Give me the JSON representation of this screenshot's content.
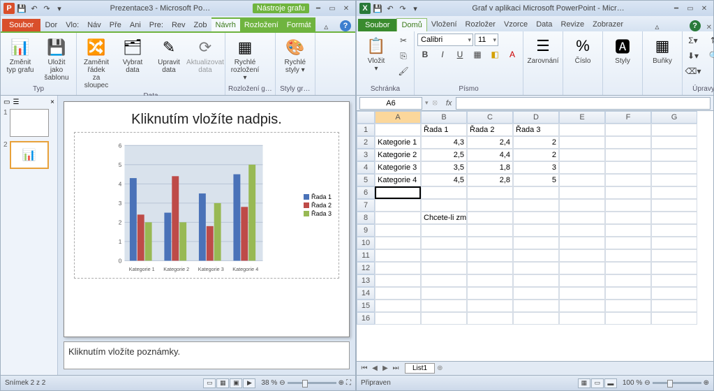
{
  "pp": {
    "title": "Prezentace3 - Microsoft Po…",
    "chart_tools": "Nástroje grafu",
    "file_tab": "Soubor",
    "tabs": [
      "Dor",
      "Vlo:",
      "Náv",
      "Pře",
      "Ani",
      "Pre:",
      "Rev",
      "Zob"
    ],
    "chart_tabs": [
      "Návrh",
      "Rozložení",
      "Formát"
    ],
    "ribbon_groups": {
      "typ": {
        "label": "Typ",
        "btns": [
          {
            "lbl": "Změnit\ntyp grafu",
            "ico": "📊"
          },
          {
            "lbl": "Uložit jako\nšablonu",
            "ico": "💾"
          }
        ]
      },
      "data": {
        "label": "Data",
        "btns": [
          {
            "lbl": "Zaměnit řádek\nza sloupec",
            "ico": "🔀"
          },
          {
            "lbl": "Vybrat\ndata",
            "ico": "🗂"
          },
          {
            "lbl": "Upravit\ndata",
            "ico": "✎"
          },
          {
            "lbl": "Aktualizovat\ndata",
            "ico": "⟳"
          }
        ]
      },
      "layout": {
        "label": "Rozložení g…",
        "btn": {
          "lbl": "Rychlé\nrozložení ▾",
          "ico": "▦"
        }
      },
      "styles": {
        "label": "Styly gr…",
        "btn": {
          "lbl": "Rychlé\nstyly ▾",
          "ico": "🎨"
        }
      }
    },
    "slide_title": "Kliknutím vložíte nadpis.",
    "notes_placeholder": "Kliknutím vložíte poznámky.",
    "chart": {
      "categories": [
        "Kategorie 1",
        "Kategorie 2",
        "Kategorie 3",
        "Kategorie 4"
      ],
      "series": [
        {
          "name": "Řada 1",
          "color": "#4a72b8",
          "values": [
            4.3,
            2.5,
            3.5,
            4.5
          ]
        },
        {
          "name": "Řada 2",
          "color": "#be4b48",
          "values": [
            2.4,
            4.4,
            1.8,
            2.8
          ]
        },
        {
          "name": "Řada 3",
          "color": "#98b954",
          "values": [
            2,
            2,
            3,
            5
          ]
        }
      ],
      "ylim": [
        0,
        6
      ],
      "ytick": 1,
      "bg": "#d9e2ec",
      "grid": "#b8c5d6"
    },
    "status": {
      "slide": "Snímek 2 z 2",
      "zoom": "38 %",
      "lang": ""
    }
  },
  "xl": {
    "title": "Graf v aplikaci Microsoft PowerPoint - Micr…",
    "file_tab": "Soubor",
    "tabs": [
      "Domů",
      "Vložení",
      "Rozložer",
      "Vzorce",
      "Data",
      "Revize",
      "Zobrazer"
    ],
    "active_tab": "Domů",
    "font": {
      "name": "Calibri",
      "size": "11"
    },
    "ribbon_groups": [
      "Schránka",
      "Písmo",
      "Zarovnání",
      "Číslo",
      "Styly",
      "Buňky",
      "Úpravy"
    ],
    "namebox": "A6",
    "columns": [
      "A",
      "B",
      "C",
      "D",
      "E",
      "F",
      "G"
    ],
    "rows": [
      [
        "",
        "Řada 1",
        "Řada 2",
        "Řada 3",
        "",
        "",
        ""
      ],
      [
        "Kategorie 1",
        "4,3",
        "2,4",
        "2",
        "",
        "",
        ""
      ],
      [
        "Kategorie 2",
        "2,5",
        "4,4",
        "2",
        "",
        "",
        ""
      ],
      [
        "Kategorie 3",
        "3,5",
        "1,8",
        "3",
        "",
        "",
        ""
      ],
      [
        "Kategorie 4",
        "4,5",
        "2,8",
        "5",
        "",
        "",
        ""
      ],
      [
        "",
        "",
        "",
        "",
        "",
        "",
        ""
      ],
      [
        "",
        "",
        "",
        "",
        "",
        "",
        ""
      ],
      [
        "",
        "Chcete-li změnit velikost oblasti dat grafu, přetáhněte její pr",
        "",
        "",
        "",
        "",
        ""
      ],
      [
        "",
        "",
        "",
        "",
        "",
        "",
        ""
      ],
      [
        "",
        "",
        "",
        "",
        "",
        "",
        ""
      ],
      [
        "",
        "",
        "",
        "",
        "",
        "",
        ""
      ],
      [
        "",
        "",
        "",
        "",
        "",
        "",
        ""
      ],
      [
        "",
        "",
        "",
        "",
        "",
        "",
        ""
      ],
      [
        "",
        "",
        "",
        "",
        "",
        "",
        ""
      ],
      [
        "",
        "",
        "",
        "",
        "",
        "",
        ""
      ],
      [
        "",
        "",
        "",
        "",
        "",
        "",
        ""
      ]
    ],
    "active_cell": [
      6,
      1
    ],
    "sheet_name": "List1",
    "status": "Připraven",
    "zoom": "100 %"
  }
}
